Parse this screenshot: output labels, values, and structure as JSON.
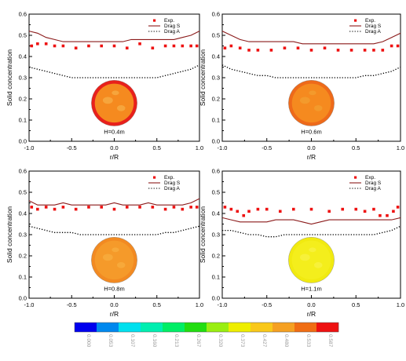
{
  "chart_data": [
    {
      "type": "line",
      "panel_label": "H=0.4m",
      "xlabel": "r/R",
      "ylabel": "Solid concentration",
      "xlim": [
        -1.0,
        1.0
      ],
      "ylim": [
        0.0,
        0.6
      ],
      "x_ticks": [
        "-1.0",
        "-0.5",
        "0.0",
        "0.5",
        "1.0"
      ],
      "y_ticks": [
        "0.0",
        "0.1",
        "0.2",
        "0.3",
        "0.4",
        "0.5",
        "0.6"
      ],
      "legend_position": "top-right",
      "series": [
        {
          "name": "Exp.",
          "style": "markers",
          "color": "#ee1111",
          "x": [
            -0.97,
            -0.9,
            -0.8,
            -0.7,
            -0.6,
            -0.45,
            -0.3,
            -0.15,
            0.0,
            0.15,
            0.3,
            0.45,
            0.6,
            0.7,
            0.8,
            0.9,
            0.97
          ],
          "y": [
            0.45,
            0.46,
            0.46,
            0.45,
            0.45,
            0.44,
            0.45,
            0.45,
            0.45,
            0.44,
            0.46,
            0.44,
            0.45,
            0.45,
            0.45,
            0.45,
            0.45
          ]
        },
        {
          "name": "Drag S",
          "style": "solid",
          "color": "#8b1a1a",
          "x": [
            -1.0,
            -0.9,
            -0.8,
            -0.7,
            -0.6,
            -0.5,
            -0.4,
            -0.3,
            -0.2,
            -0.1,
            0.0,
            0.1,
            0.2,
            0.3,
            0.4,
            0.5,
            0.6,
            0.7,
            0.8,
            0.9,
            1.0
          ],
          "y": [
            0.52,
            0.51,
            0.49,
            0.48,
            0.47,
            0.47,
            0.47,
            0.47,
            0.47,
            0.47,
            0.47,
            0.47,
            0.48,
            0.48,
            0.48,
            0.48,
            0.48,
            0.48,
            0.49,
            0.5,
            0.52
          ]
        },
        {
          "name": "Drag A",
          "style": "dotted",
          "color": "#000000",
          "x": [
            -1.0,
            -0.9,
            -0.8,
            -0.7,
            -0.6,
            -0.5,
            -0.4,
            -0.3,
            -0.2,
            -0.1,
            0.0,
            0.1,
            0.2,
            0.3,
            0.4,
            0.5,
            0.6,
            0.7,
            0.8,
            0.9,
            1.0
          ],
          "y": [
            0.35,
            0.34,
            0.33,
            0.32,
            0.31,
            0.3,
            0.3,
            0.3,
            0.3,
            0.3,
            0.3,
            0.3,
            0.3,
            0.3,
            0.3,
            0.3,
            0.31,
            0.32,
            0.33,
            0.34,
            0.36
          ]
        }
      ],
      "contour_disk": {
        "base_color": "#f58a1f",
        "ring_color": "#e8201b",
        "patch_color": "#f6a53c"
      }
    },
    {
      "type": "line",
      "panel_label": "H=0.6m",
      "xlabel": "r/R",
      "ylabel": "Solid concentration",
      "xlim": [
        -1.0,
        1.0
      ],
      "ylim": [
        0.0,
        0.6
      ],
      "x_ticks": [
        "-1.0",
        "-0.5",
        "0.0",
        "0.5",
        "1.0"
      ],
      "y_ticks": [
        "0.0",
        "0.1",
        "0.2",
        "0.3",
        "0.4",
        "0.5",
        "0.6"
      ],
      "legend_position": "top-right",
      "series": [
        {
          "name": "Exp.",
          "style": "markers",
          "color": "#ee1111",
          "x": [
            -0.97,
            -0.9,
            -0.8,
            -0.7,
            -0.6,
            -0.45,
            -0.3,
            -0.15,
            0.0,
            0.15,
            0.3,
            0.45,
            0.6,
            0.7,
            0.8,
            0.9,
            0.97
          ],
          "y": [
            0.44,
            0.45,
            0.44,
            0.43,
            0.43,
            0.43,
            0.44,
            0.44,
            0.43,
            0.44,
            0.43,
            0.43,
            0.43,
            0.43,
            0.43,
            0.45,
            0.45
          ]
        },
        {
          "name": "Drag S",
          "style": "solid",
          "color": "#8b1a1a",
          "x": [
            -1.0,
            -0.9,
            -0.8,
            -0.7,
            -0.6,
            -0.5,
            -0.4,
            -0.3,
            -0.2,
            -0.1,
            0.0,
            0.1,
            0.2,
            0.3,
            0.4,
            0.5,
            0.6,
            0.7,
            0.8,
            0.9,
            1.0
          ],
          "y": [
            0.52,
            0.5,
            0.48,
            0.47,
            0.47,
            0.47,
            0.47,
            0.47,
            0.47,
            0.46,
            0.46,
            0.46,
            0.46,
            0.46,
            0.46,
            0.46,
            0.46,
            0.46,
            0.47,
            0.49,
            0.51
          ]
        },
        {
          "name": "Drag A",
          "style": "dotted",
          "color": "#000000",
          "x": [
            -1.0,
            -0.9,
            -0.8,
            -0.7,
            -0.6,
            -0.5,
            -0.4,
            -0.3,
            -0.2,
            -0.1,
            0.0,
            0.1,
            0.2,
            0.3,
            0.4,
            0.5,
            0.6,
            0.7,
            0.8,
            0.9,
            1.0
          ],
          "y": [
            0.36,
            0.34,
            0.33,
            0.32,
            0.31,
            0.31,
            0.3,
            0.3,
            0.3,
            0.3,
            0.3,
            0.3,
            0.3,
            0.3,
            0.3,
            0.3,
            0.31,
            0.31,
            0.32,
            0.33,
            0.35
          ]
        }
      ],
      "contour_disk": {
        "base_color": "#f58a1f",
        "ring_color": "#ee6a1a",
        "patch_color": "#f39a2c"
      }
    },
    {
      "type": "line",
      "panel_label": "H=0.8m",
      "xlabel": "r/R",
      "ylabel": "Solid concentration",
      "xlim": [
        -1.0,
        1.0
      ],
      "ylim": [
        0.0,
        0.6
      ],
      "x_ticks": [
        "-1.0",
        "-0.5",
        "0.0",
        "0.5",
        "1.0"
      ],
      "y_ticks": [
        "0.0",
        "0.1",
        "0.2",
        "0.3",
        "0.4",
        "0.5",
        "0.6"
      ],
      "legend_position": "top-right",
      "series": [
        {
          "name": "Exp.",
          "style": "markers",
          "color": "#ee1111",
          "x": [
            -0.97,
            -0.9,
            -0.8,
            -0.7,
            -0.6,
            -0.45,
            -0.3,
            -0.15,
            0.0,
            0.15,
            0.3,
            0.45,
            0.6,
            0.7,
            0.8,
            0.9,
            0.97
          ],
          "y": [
            0.43,
            0.42,
            0.43,
            0.42,
            0.43,
            0.42,
            0.43,
            0.43,
            0.42,
            0.43,
            0.43,
            0.43,
            0.42,
            0.43,
            0.42,
            0.43,
            0.43
          ]
        },
        {
          "name": "Drag S",
          "style": "solid",
          "color": "#8b1a1a",
          "x": [
            -1.0,
            -0.9,
            -0.8,
            -0.7,
            -0.6,
            -0.5,
            -0.4,
            -0.3,
            -0.2,
            -0.1,
            0.0,
            0.1,
            0.2,
            0.3,
            0.4,
            0.5,
            0.6,
            0.7,
            0.8,
            0.9,
            1.0
          ],
          "y": [
            0.46,
            0.44,
            0.44,
            0.44,
            0.45,
            0.44,
            0.44,
            0.44,
            0.44,
            0.44,
            0.45,
            0.44,
            0.44,
            0.44,
            0.45,
            0.44,
            0.44,
            0.44,
            0.44,
            0.45,
            0.47
          ]
        },
        {
          "name": "Drag A",
          "style": "dotted",
          "color": "#000000",
          "x": [
            -1.0,
            -0.9,
            -0.8,
            -0.7,
            -0.6,
            -0.5,
            -0.4,
            -0.3,
            -0.2,
            -0.1,
            0.0,
            0.1,
            0.2,
            0.3,
            0.4,
            0.5,
            0.6,
            0.7,
            0.8,
            0.9,
            1.0
          ],
          "y": [
            0.34,
            0.33,
            0.32,
            0.31,
            0.31,
            0.31,
            0.3,
            0.3,
            0.3,
            0.3,
            0.3,
            0.3,
            0.3,
            0.3,
            0.3,
            0.3,
            0.31,
            0.31,
            0.32,
            0.33,
            0.34
          ]
        }
      ],
      "contour_disk": {
        "base_color": "#f59a2a",
        "ring_color": "#f28a22",
        "patch_color": "#f7a93a"
      }
    },
    {
      "type": "line",
      "panel_label": "H=1.1m",
      "xlabel": "r/R",
      "ylabel": "Solid concentration",
      "xlim": [
        -1.0,
        1.0
      ],
      "ylim": [
        0.0,
        0.6
      ],
      "x_ticks": [
        "-1.0",
        "-0.5",
        "0.0",
        "0.5",
        "1.0"
      ],
      "y_ticks": [
        "0.0",
        "0.1",
        "0.2",
        "0.3",
        "0.4",
        "0.5",
        "0.6"
      ],
      "legend_position": "top-right",
      "series": [
        {
          "name": "Exp.",
          "style": "markers",
          "color": "#ee1111",
          "x": [
            -0.97,
            -0.9,
            -0.83,
            -0.76,
            -0.7,
            -0.6,
            -0.5,
            -0.35,
            -0.2,
            0.0,
            0.2,
            0.35,
            0.5,
            0.6,
            0.7,
            0.77,
            0.85,
            0.92,
            0.97
          ],
          "y": [
            0.43,
            0.42,
            0.41,
            0.39,
            0.41,
            0.42,
            0.42,
            0.41,
            0.42,
            0.42,
            0.41,
            0.42,
            0.42,
            0.41,
            0.42,
            0.39,
            0.39,
            0.41,
            0.43
          ]
        },
        {
          "name": "Drag S",
          "style": "solid",
          "color": "#8b1a1a",
          "x": [
            -1.0,
            -0.9,
            -0.8,
            -0.7,
            -0.6,
            -0.5,
            -0.4,
            -0.3,
            -0.2,
            -0.1,
            0.0,
            0.1,
            0.2,
            0.3,
            0.4,
            0.5,
            0.6,
            0.7,
            0.8,
            0.9,
            1.0
          ],
          "y": [
            0.38,
            0.37,
            0.36,
            0.36,
            0.36,
            0.36,
            0.37,
            0.37,
            0.37,
            0.36,
            0.35,
            0.36,
            0.37,
            0.37,
            0.37,
            0.37,
            0.37,
            0.37,
            0.37,
            0.37,
            0.38
          ]
        },
        {
          "name": "Drag A",
          "style": "dotted",
          "color": "#000000",
          "x": [
            -1.0,
            -0.9,
            -0.8,
            -0.7,
            -0.6,
            -0.5,
            -0.4,
            -0.3,
            -0.2,
            -0.1,
            0.0,
            0.1,
            0.2,
            0.3,
            0.4,
            0.5,
            0.6,
            0.7,
            0.8,
            0.9,
            1.0
          ],
          "y": [
            0.32,
            0.32,
            0.31,
            0.3,
            0.3,
            0.29,
            0.29,
            0.3,
            0.3,
            0.3,
            0.3,
            0.3,
            0.3,
            0.3,
            0.3,
            0.3,
            0.3,
            0.3,
            0.31,
            0.32,
            0.34
          ]
        }
      ],
      "contour_disk": {
        "base_color": "#f4ee1c",
        "ring_color": "#f1ea10",
        "patch_color": "#f7f13a"
      }
    }
  ],
  "colorbar": {
    "colors": [
      "#0000ee",
      "#0088ee",
      "#00e0ee",
      "#00eeb0",
      "#00ee66",
      "#22dd11",
      "#99ee11",
      "#eeee00",
      "#f9c81a",
      "#f5a022",
      "#f06d14",
      "#ee1111"
    ],
    "labels": [
      "0.000",
      "0.053",
      "0.107",
      "0.160",
      "0.213",
      "0.267",
      "0.320",
      "0.373",
      "0.427",
      "0.480",
      "0.533",
      "0.587"
    ]
  }
}
